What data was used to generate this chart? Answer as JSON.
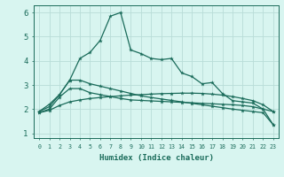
{
  "xlabel": "Humidex (Indice chaleur)",
  "x_values": [
    0,
    1,
    2,
    3,
    4,
    5,
    6,
    7,
    8,
    9,
    10,
    11,
    12,
    13,
    14,
    15,
    16,
    17,
    18,
    19,
    20,
    21,
    22,
    23
  ],
  "line1": [
    1.9,
    2.2,
    2.6,
    3.2,
    4.1,
    4.35,
    4.85,
    5.85,
    6.0,
    4.45,
    4.3,
    4.1,
    4.05,
    4.1,
    3.5,
    3.35,
    3.05,
    3.1,
    2.65,
    2.35,
    2.3,
    2.25,
    2.0,
    1.35
  ],
  "line2": [
    1.9,
    2.1,
    2.6,
    3.2,
    3.2,
    3.05,
    2.95,
    2.85,
    2.75,
    2.65,
    2.55,
    2.48,
    2.42,
    2.36,
    2.3,
    2.24,
    2.18,
    2.12,
    2.06,
    2.0,
    1.95,
    1.9,
    1.85,
    1.35
  ],
  "line3": [
    1.85,
    2.0,
    2.5,
    2.85,
    2.85,
    2.68,
    2.6,
    2.52,
    2.44,
    2.38,
    2.36,
    2.34,
    2.32,
    2.3,
    2.28,
    2.26,
    2.24,
    2.22,
    2.2,
    2.18,
    2.15,
    2.1,
    2.0,
    1.9
  ],
  "line4": [
    1.85,
    1.95,
    2.15,
    2.3,
    2.38,
    2.44,
    2.48,
    2.52,
    2.55,
    2.58,
    2.6,
    2.62,
    2.64,
    2.65,
    2.66,
    2.66,
    2.65,
    2.62,
    2.58,
    2.52,
    2.44,
    2.35,
    2.18,
    1.9
  ],
  "line_color": "#1a6b5a",
  "bg_color": "#d8f5f0",
  "grid_color": "#b8ddd8",
  "ylim": [
    0.8,
    6.3
  ],
  "xlim": [
    -0.5,
    23.5
  ]
}
